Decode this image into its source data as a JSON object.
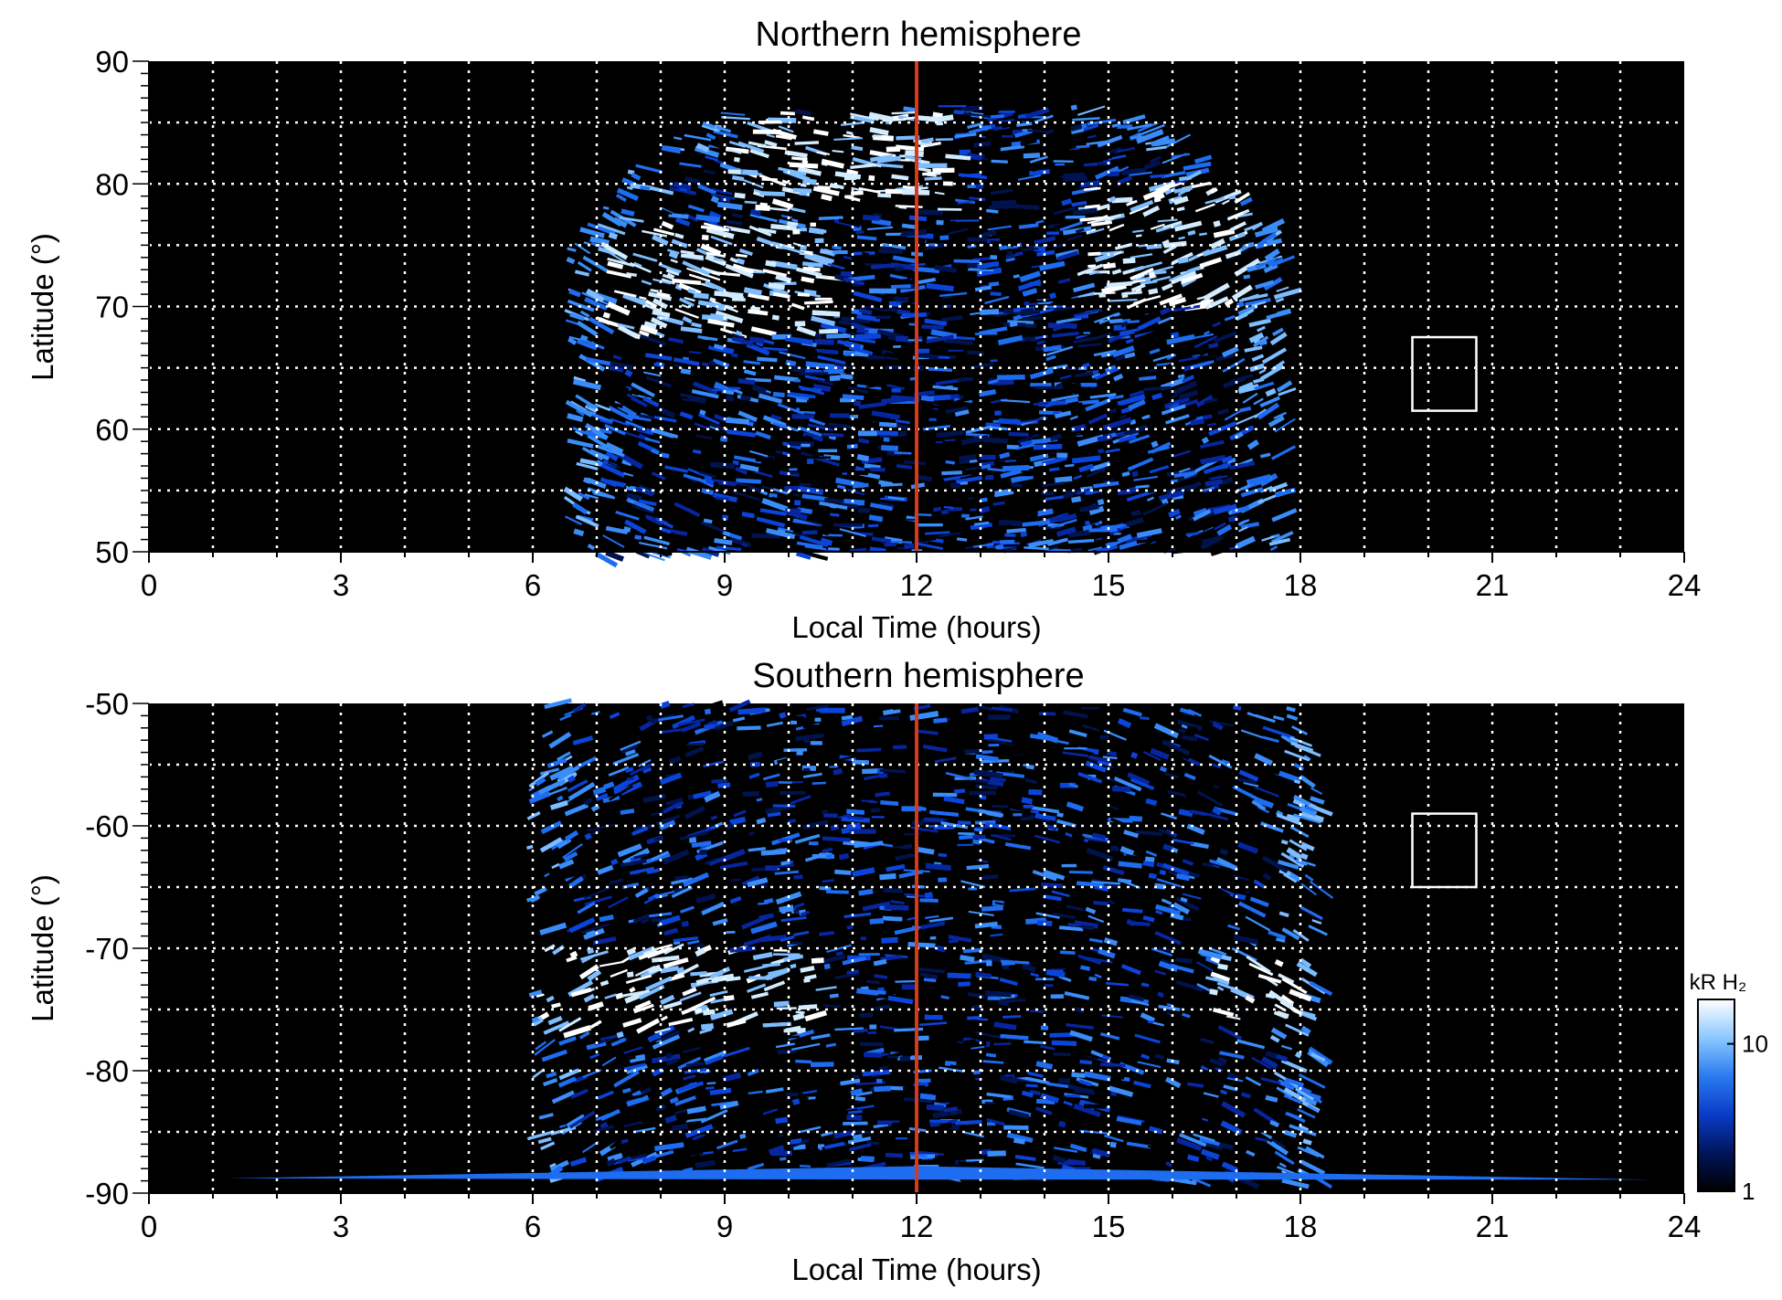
{
  "chart_data": [
    {
      "type": "heatmap",
      "title": "Northern hemisphere",
      "xlabel": "Local Time (hours)",
      "ylabel": "Latitude (°)",
      "xlim": [
        0,
        24
      ],
      "ylim": [
        50,
        90
      ],
      "xticks": [
        "0",
        "3",
        "6",
        "9",
        "12",
        "15",
        "18",
        "21",
        "24"
      ],
      "yticks": [
        "50",
        "60",
        "70",
        "80",
        "90"
      ],
      "grid": true,
      "noon_line_x": 12,
      "box": {
        "x": [
          19.75,
          20.75
        ],
        "y": [
          61.5,
          67.5
        ]
      },
      "coverage_lt": [
        6.5,
        17.8
      ],
      "bright_regions": [
        {
          "lt": [
            7.0,
            10.5
          ],
          "lat": [
            68,
            77
          ]
        },
        {
          "lt": [
            9.0,
            12.5
          ],
          "lat": [
            78,
            86
          ]
        },
        {
          "lt": [
            14.5,
            17.0
          ],
          "lat": [
            70,
            80
          ]
        }
      ]
    },
    {
      "type": "heatmap",
      "title": "Southern hemisphere",
      "xlabel": "Local Time (hours)",
      "ylabel": "Latitude (°)",
      "xlim": [
        0,
        24
      ],
      "ylim": [
        -90,
        -50
      ],
      "xticks": [
        "0",
        "3",
        "6",
        "9",
        "12",
        "15",
        "18",
        "21",
        "24"
      ],
      "yticks": [
        "-90",
        "-80",
        "-70",
        "-60",
        "-50"
      ],
      "grid": true,
      "noon_line_x": 12,
      "box": {
        "x": [
          19.75,
          20.75
        ],
        "y": [
          -65,
          -59
        ]
      },
      "coverage_lt": [
        5.9,
        18.3
      ],
      "bright_regions": [
        {
          "lt": [
            6.0,
            10.5
          ],
          "lat": [
            -77,
            -70
          ]
        },
        {
          "lt": [
            16.5,
            18.0
          ],
          "lat": [
            -76,
            -70
          ]
        }
      ]
    }
  ],
  "colorbar": {
    "unit_label": "kR H₂",
    "ticks": [
      "10",
      "1"
    ],
    "scale": "log",
    "range": [
      1,
      20
    ],
    "colors": [
      "#000000",
      "#00155a",
      "#0a3cc8",
      "#2a7af0",
      "#8cc8ff",
      "#ffffff"
    ]
  },
  "colors": {
    "background": "#000000",
    "noon_line": "#d63a1a",
    "grid": "#ffffff",
    "box": "#ffffff"
  }
}
